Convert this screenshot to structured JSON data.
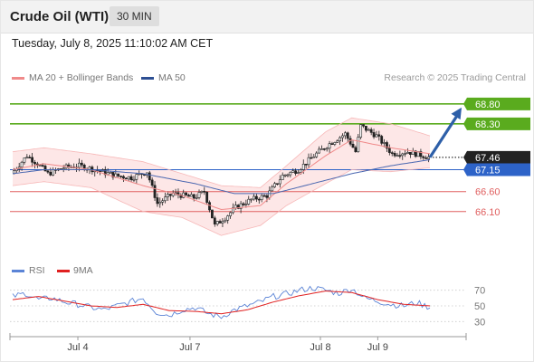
{
  "header": {
    "title": "Crude Oil (WTI)",
    "timeframe": "30 MIN",
    "datetime": "Tuesday, July 8, 2025 11:10:02 AM CET"
  },
  "legend": {
    "bollinger_label": "MA 20 + Bollinger Bands",
    "ma50_label": "MA 50",
    "rsi_label": "RSI",
    "rsi_ma_label": "9MA",
    "credit": "Research © 2025 Trading Central"
  },
  "colors": {
    "bollinger": "#f08a8a",
    "band_fill": "#fde3e3",
    "ma50": "#4a67b0",
    "resistance": "#5aab1e",
    "support": "#e06060",
    "pivot": "#2d63c8",
    "current": "#222222",
    "arrow": "#2d5fa8",
    "rsi": "#5b84d6",
    "rsi_ma": "#e02020"
  },
  "chart_data": {
    "type": "candlestick",
    "ylim": [
      65.05,
      69.25
    ],
    "levels": [
      {
        "name": "resistance-2",
        "value": 68.8,
        "label": "68.80",
        "kind": "resistance"
      },
      {
        "name": "resistance-1",
        "value": 68.3,
        "label": "68.30",
        "kind": "resistance"
      },
      {
        "name": "current-price",
        "value": 67.46,
        "label": "67.46",
        "kind": "current"
      },
      {
        "name": "pivot",
        "value": 67.15,
        "label": "67.15",
        "kind": "pivot"
      },
      {
        "name": "support-1",
        "value": 66.6,
        "label": "66.60",
        "kind": "support"
      },
      {
        "name": "support-2",
        "value": 66.1,
        "label": "66.10",
        "kind": "support"
      }
    ],
    "price_key": [
      [
        0,
        67.05
      ],
      [
        6,
        67.5
      ],
      [
        10,
        67.3
      ],
      [
        14,
        67.05
      ],
      [
        20,
        67.2
      ],
      [
        26,
        67.25
      ],
      [
        32,
        67.15
      ],
      [
        40,
        67.0
      ],
      [
        46,
        66.95
      ],
      [
        52,
        67.1
      ],
      [
        56,
        66.3
      ],
      [
        62,
        66.55
      ],
      [
        70,
        66.45
      ],
      [
        74,
        66.6
      ],
      [
        78,
        65.75
      ],
      [
        82,
        65.95
      ],
      [
        86,
        66.2
      ],
      [
        92,
        66.4
      ],
      [
        98,
        66.5
      ],
      [
        104,
        67.0
      ],
      [
        110,
        67.15
      ],
      [
        116,
        67.5
      ],
      [
        122,
        67.8
      ],
      [
        128,
        68.05
      ],
      [
        132,
        67.6
      ],
      [
        134,
        68.25
      ],
      [
        140,
        68.0
      ],
      [
        146,
        67.55
      ],
      [
        152,
        67.6
      ],
      [
        158,
        67.5
      ],
      [
        160,
        67.46
      ]
    ],
    "bollinger_key": [
      [
        0,
        67.6,
        66.75
      ],
      [
        12,
        67.7,
        66.85
      ],
      [
        30,
        67.55,
        66.7
      ],
      [
        50,
        67.35,
        66.1
      ],
      [
        65,
        67.05,
        65.95
      ],
      [
        80,
        66.75,
        65.5
      ],
      [
        95,
        66.7,
        65.75
      ],
      [
        105,
        67.25,
        66.25
      ],
      [
        120,
        68.1,
        66.8
      ],
      [
        130,
        68.45,
        67.15
      ],
      [
        145,
        68.3,
        67.1
      ],
      [
        160,
        68.0,
        67.2
      ]
    ],
    "ma20_key": [
      [
        0,
        67.15
      ],
      [
        12,
        67.3
      ],
      [
        30,
        67.15
      ],
      [
        50,
        66.75
      ],
      [
        65,
        66.5
      ],
      [
        80,
        66.15
      ],
      [
        95,
        66.25
      ],
      [
        105,
        66.8
      ],
      [
        120,
        67.5
      ],
      [
        130,
        67.9
      ],
      [
        145,
        67.7
      ],
      [
        160,
        67.55
      ]
    ],
    "ma50_key": [
      [
        0,
        67.05
      ],
      [
        12,
        67.15
      ],
      [
        30,
        67.15
      ],
      [
        50,
        67.05
      ],
      [
        70,
        66.8
      ],
      [
        85,
        66.55
      ],
      [
        100,
        66.55
      ],
      [
        115,
        66.8
      ],
      [
        130,
        67.05
      ],
      [
        145,
        67.25
      ],
      [
        160,
        67.4
      ]
    ],
    "forecast_arrow": {
      "from": [
        160,
        67.46
      ],
      "to": [
        172,
        68.8
      ]
    },
    "x_ticks": [
      {
        "label": "Jul 4",
        "bar": 25
      },
      {
        "label": "Jul 7",
        "bar": 68
      },
      {
        "label": "Jul 8",
        "bar": 118
      },
      {
        "label": "Jul 9",
        "bar": 140
      }
    ],
    "rsi": {
      "ylim": [
        20,
        80
      ],
      "y_ticks": [
        70,
        50,
        30
      ],
      "rsi_key": [
        [
          0,
          62
        ],
        [
          5,
          66
        ],
        [
          10,
          58
        ],
        [
          15,
          60
        ],
        [
          20,
          55
        ],
        [
          25,
          52
        ],
        [
          30,
          48
        ],
        [
          35,
          45
        ],
        [
          40,
          50
        ],
        [
          45,
          55
        ],
        [
          50,
          60
        ],
        [
          55,
          42
        ],
        [
          60,
          38
        ],
        [
          65,
          45
        ],
        [
          70,
          48
        ],
        [
          75,
          40
        ],
        [
          80,
          36
        ],
        [
          85,
          45
        ],
        [
          90,
          50
        ],
        [
          95,
          55
        ],
        [
          100,
          62
        ],
        [
          105,
          65
        ],
        [
          110,
          70
        ],
        [
          115,
          73
        ],
        [
          120,
          70
        ],
        [
          125,
          66
        ],
        [
          130,
          72
        ],
        [
          135,
          60
        ],
        [
          140,
          56
        ],
        [
          145,
          52
        ],
        [
          150,
          50
        ],
        [
          155,
          54
        ],
        [
          160,
          48
        ]
      ],
      "ma_key": [
        [
          0,
          58
        ],
        [
          10,
          62
        ],
        [
          20,
          56
        ],
        [
          30,
          50
        ],
        [
          40,
          48
        ],
        [
          50,
          52
        ],
        [
          60,
          44
        ],
        [
          70,
          43
        ],
        [
          80,
          40
        ],
        [
          90,
          45
        ],
        [
          100,
          55
        ],
        [
          110,
          63
        ],
        [
          120,
          69
        ],
        [
          130,
          67
        ],
        [
          140,
          58
        ],
        [
          150,
          52
        ],
        [
          160,
          50
        ]
      ]
    }
  }
}
